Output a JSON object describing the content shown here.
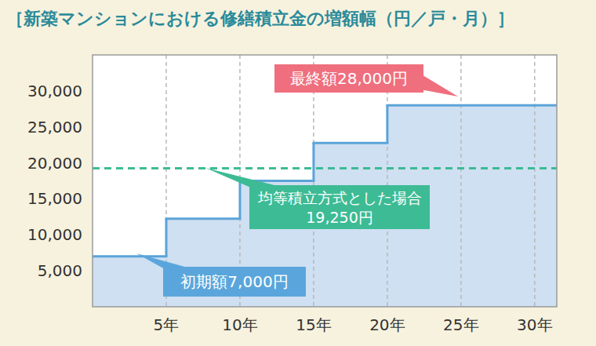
{
  "chart_data": {
    "type": "line",
    "line_style": "step",
    "title": "［新築マンションにおける修繕積立金の増額幅（円／戸・月）］",
    "x": [
      0,
      5,
      10,
      15,
      20,
      30
    ],
    "series": [
      {
        "color": "#5ba4d8",
        "values": [
          7000,
          12250,
          17500,
          22750,
          28000,
          28000
        ]
      }
    ],
    "xlim": [
      0,
      31.5
    ],
    "xticks": [
      {
        "value": 5,
        "label": "5年"
      },
      {
        "value": 10,
        "label": "10年"
      },
      {
        "value": 15,
        "label": "15年"
      },
      {
        "value": 20,
        "label": "20年"
      },
      {
        "value": 25,
        "label": "25年"
      },
      {
        "value": 30,
        "label": "30年"
      }
    ],
    "ylim": [
      0,
      35000
    ],
    "yticks": [
      {
        "value": 5000,
        "label": "5,000"
      },
      {
        "value": 10000,
        "label": "10,000"
      },
      {
        "value": 15000,
        "label": "15,000"
      },
      {
        "value": 20000,
        "label": "20,000"
      },
      {
        "value": 25000,
        "label": "25,000"
      },
      {
        "value": 30000,
        "label": "30,000"
      }
    ],
    "grid": "x",
    "reference_line": {
      "value": 19250,
      "label": "均等積立方式とした場合",
      "value_label": "19,250円",
      "color": "#3dbb94",
      "line_style": "dashed"
    },
    "annotations": [
      {
        "text": "最終額28,000円",
        "color": "#ef6f7e"
      },
      {
        "text": "初期額7,000円",
        "color": "#5aa6dc"
      }
    ]
  }
}
